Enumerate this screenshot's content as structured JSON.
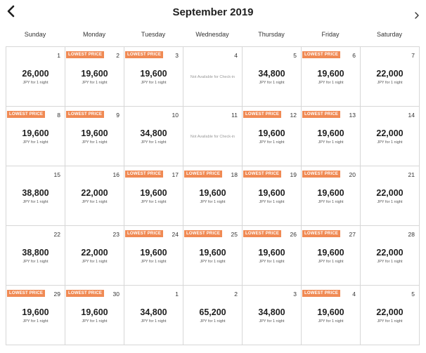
{
  "header": {
    "title": "September 2019",
    "prev_icon": "chevron-left-icon",
    "next_icon": "chevron-right-icon"
  },
  "weekdays": [
    "Sunday",
    "Monday",
    "Tuesday",
    "Wednesday",
    "Thursday",
    "Friday",
    "Saturday"
  ],
  "colors": {
    "badge": "#f08a54",
    "border": "#d7d7d7"
  },
  "days": [
    {
      "day": "1",
      "price": "26,000",
      "unit": "JPY for 1 night"
    },
    {
      "day": "2",
      "badge": "LOWEST PRICE",
      "price": "19,600",
      "unit": "JPY for 1 night"
    },
    {
      "day": "3",
      "badge": "LOWEST PRICE",
      "price": "19,600",
      "unit": "JPY for 1 night"
    },
    {
      "day": "4",
      "note": "Not Available for Check-in"
    },
    {
      "day": "5",
      "price": "34,800",
      "unit": "JPY for 1 night"
    },
    {
      "day": "6",
      "badge": "LOWEST PRICE",
      "price": "19,600",
      "unit": "JPY for 1 night"
    },
    {
      "day": "7",
      "price": "22,000",
      "unit": "JPY for 1 night"
    },
    {
      "day": "8",
      "badge": "LOWEST PRICE",
      "price": "19,600",
      "unit": "JPY for 1 night"
    },
    {
      "day": "9",
      "badge": "LOWEST PRICE",
      "price": "19,600",
      "unit": "JPY for 1 night"
    },
    {
      "day": "10",
      "price": "34,800",
      "unit": "JPY for 1 night"
    },
    {
      "day": "11",
      "note": "Not Available for Check-in"
    },
    {
      "day": "12",
      "badge": "LOWEST PRICE",
      "price": "19,600",
      "unit": "JPY for 1 night"
    },
    {
      "day": "13",
      "badge": "LOWEST PRICE",
      "price": "19,600",
      "unit": "JPY for 1 night"
    },
    {
      "day": "14",
      "price": "22,000",
      "unit": "JPY for 1 night"
    },
    {
      "day": "15",
      "price": "38,800",
      "unit": "JPY for 1 night"
    },
    {
      "day": "16",
      "price": "22,000",
      "unit": "JPY for 1 night"
    },
    {
      "day": "17",
      "badge": "LOWEST PRICE",
      "price": "19,600",
      "unit": "JPY for 1 night"
    },
    {
      "day": "18",
      "badge": "LOWEST PRICE",
      "price": "19,600",
      "unit": "JPY for 1 night"
    },
    {
      "day": "19",
      "badge": "LOWEST PRICE",
      "price": "19,600",
      "unit": "JPY for 1 night"
    },
    {
      "day": "20",
      "badge": "LOWEST PRICE",
      "price": "19,600",
      "unit": "JPY for 1 night"
    },
    {
      "day": "21",
      "price": "22,000",
      "unit": "JPY for 1 night"
    },
    {
      "day": "22",
      "price": "38,800",
      "unit": "JPY for 1 night"
    },
    {
      "day": "23",
      "price": "22,000",
      "unit": "JPY for 1 night"
    },
    {
      "day": "24",
      "badge": "LOWEST PRICE",
      "price": "19,600",
      "unit": "JPY for 1 night"
    },
    {
      "day": "25",
      "badge": "LOWEST PRICE",
      "price": "19,600",
      "unit": "JPY for 1 night"
    },
    {
      "day": "26",
      "badge": "LOWEST PRICE",
      "price": "19,600",
      "unit": "JPY for 1 night"
    },
    {
      "day": "27",
      "badge": "LOWEST PRICE",
      "price": "19,600",
      "unit": "JPY for 1 night"
    },
    {
      "day": "28",
      "price": "22,000",
      "unit": "JPY for 1 night"
    },
    {
      "day": "29",
      "badge": "LOWEST PRICE",
      "price": "19,600",
      "unit": "JPY for 1 night"
    },
    {
      "day": "30",
      "badge": "LOWEST PRICE",
      "price": "19,600",
      "unit": "JPY for 1 night"
    },
    {
      "day": "1",
      "price": "34,800",
      "unit": "JPY for 1 night"
    },
    {
      "day": "2",
      "price": "65,200",
      "unit": "JPY for 1 night"
    },
    {
      "day": "3",
      "price": "34,800",
      "unit": "JPY for 1 night"
    },
    {
      "day": "4",
      "badge": "LOWEST PRICE",
      "price": "19,600",
      "unit": "JPY for 1 night"
    },
    {
      "day": "5",
      "price": "22,000",
      "unit": "JPY for 1 night"
    }
  ]
}
